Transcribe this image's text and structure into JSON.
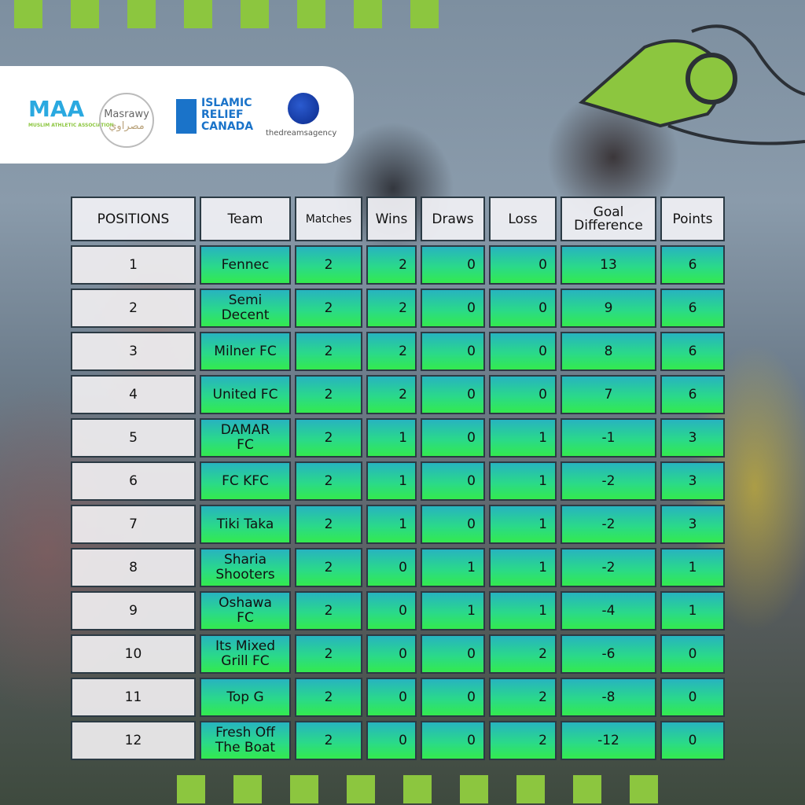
{
  "sponsors": [
    {
      "name": "MAA",
      "sub": "MUSLIM ATHLETIC ASSOCIATION"
    },
    {
      "name": "Masrawy",
      "sub": "مصراوي"
    },
    {
      "name": "ISLAMIC RELIEF CANADA"
    },
    {
      "name": "thedreamsagency"
    }
  ],
  "colors": {
    "accent_green": "#8cc63f",
    "row_top": "#27b3c0",
    "row_bottom": "#33ea4e"
  },
  "table": {
    "headers": [
      "POSITIONS",
      "Team",
      "Matches",
      "Wins",
      "Draws",
      "Loss",
      "Goal Difference",
      "Points"
    ],
    "rows": [
      [
        "1",
        "Fennec",
        "2",
        "2",
        "0",
        "0",
        "13",
        "6"
      ],
      [
        "2",
        "Semi Decent",
        "2",
        "2",
        "0",
        "0",
        "9",
        "6"
      ],
      [
        "3",
        "Milner FC",
        "2",
        "2",
        "0",
        "0",
        "8",
        "6"
      ],
      [
        "4",
        "United FC",
        "2",
        "2",
        "0",
        "0",
        "7",
        "6"
      ],
      [
        "5",
        "DAMAR FC",
        "2",
        "1",
        "0",
        "1",
        "-1",
        "3"
      ],
      [
        "6",
        "FC KFC",
        "2",
        "1",
        "0",
        "1",
        "-2",
        "3"
      ],
      [
        "7",
        "Tiki Taka",
        "2",
        "1",
        "0",
        "1",
        "-2",
        "3"
      ],
      [
        "8",
        "Sharia Shooters",
        "2",
        "0",
        "1",
        "1",
        "-2",
        "1"
      ],
      [
        "9",
        "Oshawa FC",
        "2",
        "0",
        "1",
        "1",
        "-4",
        "1"
      ],
      [
        "10",
        "Its Mixed Grill FC",
        "2",
        "0",
        "0",
        "2",
        "-6",
        "0"
      ],
      [
        "11",
        "Top G",
        "2",
        "0",
        "0",
        "2",
        "-8",
        "0"
      ],
      [
        "12",
        "Fresh Off The Boat",
        "2",
        "0",
        "0",
        "2",
        "-12",
        "0"
      ]
    ]
  }
}
